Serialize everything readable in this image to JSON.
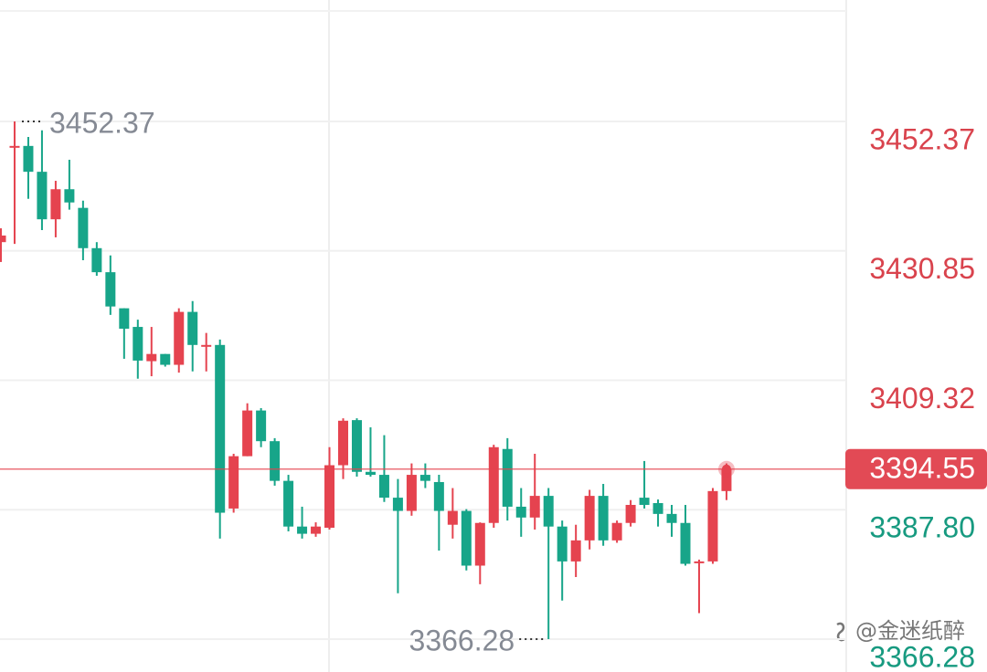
{
  "chart_data": {
    "type": "candlestick",
    "open": [
      3432.3,
      3448.0,
      3448.3,
      3444.0,
      3436.1,
      3441.1,
      3438.0,
      3431.3,
      3427.3,
      3421.3,
      3418.2,
      3412.5,
      3413.7,
      3411.9,
      3420.7,
      3415.0,
      3415.2,
      3388.0,
      3396.7,
      3404.3,
      3399.2,
      3392.6,
      3385.0,
      3383.8,
      3384.8,
      3395.2,
      3402.7,
      3394.1,
      3393.6,
      3389.8,
      3387.6,
      3393.6,
      3392.4,
      3385.3,
      3387.6,
      3378.5,
      3385.6,
      3397.9,
      3388.3,
      3386.5,
      3390.1,
      3385.0,
      3379.2,
      3382.7,
      3390.1,
      3382.7,
      3385.6,
      3389.8,
      3388.9,
      3387.1,
      3385.6,
      3378.9,
      3379.2,
      3390.9
    ],
    "high": [
      3434.6,
      3452.37,
      3449.8,
      3450.9,
      3442.5,
      3446.0,
      3439.2,
      3432.3,
      3430.1,
      3421.3,
      3419.4,
      3418.2,
      3413.7,
      3421.3,
      3422.5,
      3417.2,
      3416.1,
      3397.1,
      3405.5,
      3404.7,
      3399.7,
      3393.6,
      3388.3,
      3385.7,
      3398.2,
      3403.0,
      3403.0,
      3401.5,
      3400.2,
      3392.9,
      3395.5,
      3395.5,
      3393.6,
      3391.4,
      3387.9,
      3385.7,
      3398.6,
      3399.7,
      3391.4,
      3397.1,
      3391.4,
      3386.0,
      3385.3,
      3391.1,
      3392.1,
      3386.0,
      3389.4,
      3395.9,
      3389.5,
      3388.6,
      3388.6,
      3379.5,
      3391.4,
      3395.5
    ],
    "low": [
      3429.0,
      3432.0,
      3439.5,
      3434.3,
      3433.1,
      3437.7,
      3429.3,
      3426.7,
      3420.2,
      3412.9,
      3409.6,
      3410.0,
      3411.6,
      3410.6,
      3410.8,
      3410.8,
      3383.0,
      3387.3,
      3396.7,
      3398.2,
      3391.8,
      3384.2,
      3383.0,
      3383.3,
      3384.5,
      3392.9,
      3393.3,
      3393.3,
      3389.1,
      3373.9,
      3386.8,
      3391.4,
      3381.0,
      3383.0,
      3377.7,
      3375.4,
      3384.8,
      3386.0,
      3383.3,
      3384.5,
      3366.28,
      3372.7,
      3376.6,
      3381.2,
      3381.8,
      3382.3,
      3385.0,
      3388.0,
      3385.0,
      3383.3,
      3378.5,
      3370.6,
      3378.8,
      3389.4
    ],
    "close": [
      3433.4,
      3448.3,
      3444.0,
      3436.1,
      3441.1,
      3438.9,
      3431.3,
      3427.3,
      3421.6,
      3417.9,
      3412.6,
      3413.7,
      3411.9,
      3420.7,
      3415.2,
      3415.2,
      3387.3,
      3396.7,
      3404.3,
      3399.2,
      3392.6,
      3385.0,
      3383.8,
      3385.0,
      3395.2,
      3402.6,
      3394.1,
      3393.6,
      3389.8,
      3387.6,
      3393.6,
      3392.6,
      3387.6,
      3387.6,
      3378.5,
      3385.6,
      3398.2,
      3388.3,
      3386.5,
      3390.1,
      3385.0,
      3379.2,
      3382.7,
      3390.1,
      3382.7,
      3385.6,
      3388.6,
      3388.6,
      3387.1,
      3385.6,
      3378.8,
      3379.2,
      3390.9,
      3394.55
    ],
    "ylim": [
      3360.81,
      3472.57
    ],
    "yticks": [
      3452.37,
      3430.85,
      3409.32,
      {
        "value": 3387.8,
        "label": "3387.80"
      },
      3366.28
    ],
    "up_color": "#e5434f",
    "down_color": "#17a589",
    "grid": true
  },
  "watermark": "@金迷纸醉"
}
